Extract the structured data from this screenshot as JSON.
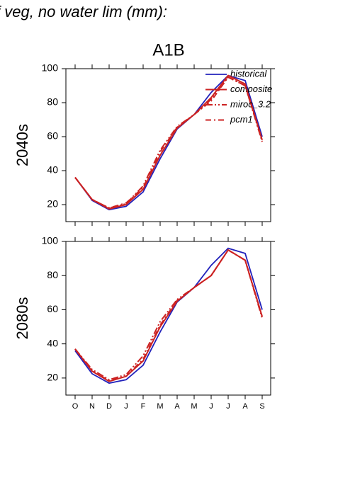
{
  "chart_data": [
    {
      "type": "line",
      "title": "f veg, no water lim (mm):",
      "subtitle": "A1B",
      "ylabel": "2040s",
      "ylim": [
        10,
        100
      ],
      "yticks": [
        20,
        40,
        60,
        80,
        100
      ],
      "legend": "upper right",
      "series": [
        {
          "name": "historical",
          "color": "#2222bb",
          "values": [
            36,
            22.5,
            17,
            19,
            27.5,
            47,
            64.5,
            73,
            86,
            96,
            93,
            60
          ]
        },
        {
          "name": "composite",
          "color": "#cc2222",
          "values": [
            36,
            23,
            17.5,
            20,
            29,
            49,
            65,
            73,
            83,
            96,
            91,
            58
          ]
        },
        {
          "name": "miroc_3.2",
          "color": "#cc2222",
          "values": [
            36,
            23,
            18,
            20.5,
            31,
            52,
            66,
            73,
            82,
            95,
            90,
            57
          ]
        },
        {
          "name": "pcm1",
          "color": "#cc2222",
          "values": [
            36,
            23,
            18,
            21,
            30,
            51,
            65.5,
            73,
            81,
            95,
            90,
            58
          ]
        }
      ]
    },
    {
      "type": "line",
      "ylabel": "2080s",
      "categories": [
        "O",
        "N",
        "D",
        "J",
        "F",
        "M",
        "A",
        "M",
        "J",
        "J",
        "A",
        "S"
      ],
      "ylim": [
        10,
        100
      ],
      "yticks": [
        20,
        40,
        60,
        80,
        100
      ],
      "series": [
        {
          "color": "#2222bb",
          "values": [
            36,
            22.5,
            17,
            19,
            27.5,
            47,
            64.5,
            73,
            86,
            96,
            93,
            60
          ]
        },
        {
          "color": "#cc2222",
          "values": [
            37,
            24,
            18,
            21,
            30,
            50,
            65,
            73,
            80,
            95,
            89,
            56
          ]
        },
        {
          "color": "#cc2222",
          "values": [
            37,
            25,
            19,
            22,
            33,
            53,
            66,
            73,
            80,
            95,
            89,
            55
          ]
        },
        {
          "color": "#cc2222",
          "values": [
            37,
            24,
            18.5,
            21,
            31,
            51,
            65.5,
            73,
            80,
            95,
            89,
            56
          ]
        }
      ]
    }
  ]
}
